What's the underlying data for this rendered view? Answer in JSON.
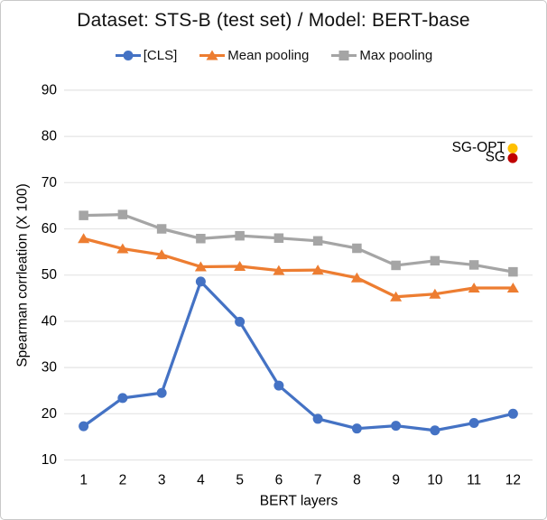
{
  "chart_data": {
    "type": "line",
    "title": "Dataset: STS-B (test set) / Model: BERT-base",
    "xlabel": "BERT layers",
    "ylabel": "Spearman corrleation (X 100)",
    "categories": [
      1,
      2,
      3,
      4,
      5,
      6,
      7,
      8,
      9,
      10,
      11,
      12
    ],
    "ylim": [
      10,
      90
    ],
    "ytick_step": 10,
    "grid": true,
    "legend_position": "top-center",
    "series": [
      {
        "name": "[CLS]",
        "marker": "circle",
        "color": "#4472C4",
        "values": [
          17.3,
          23.4,
          24.5,
          48.6,
          39.9,
          26.1,
          18.9,
          16.8,
          17.4,
          16.4,
          18.0,
          20.0
        ]
      },
      {
        "name": "Mean pooling",
        "marker": "triangle",
        "color": "#ED7D31",
        "values": [
          57.9,
          55.7,
          54.4,
          51.8,
          51.9,
          51.0,
          51.1,
          49.4,
          45.3,
          45.9,
          47.2,
          47.2
        ]
      },
      {
        "name": "Max pooling",
        "marker": "square",
        "color": "#A5A5A5",
        "values": [
          62.9,
          63.1,
          60.0,
          57.9,
          58.5,
          58.0,
          57.4,
          55.8,
          52.1,
          53.1,
          52.2,
          50.7
        ]
      }
    ],
    "annotations": [
      {
        "label": "SG-OPT",
        "value": 77.4,
        "color": "#FFC000"
      },
      {
        "label": "SG",
        "value": 75.3,
        "color": "#C00000"
      }
    ]
  }
}
